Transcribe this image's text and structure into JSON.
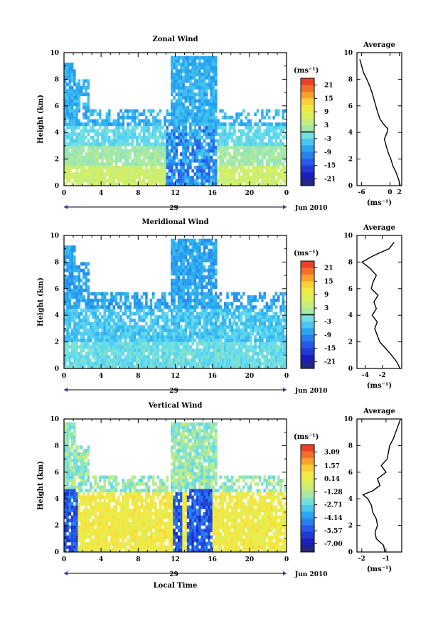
{
  "chart_data": [
    {
      "type": "heatmap",
      "title": "Zonal Wind",
      "ylabel": "Height (km)",
      "xlabel": "",
      "xlim": [
        0,
        24
      ],
      "ylim": [
        0,
        10
      ],
      "xticks": [
        "0",
        "4",
        "8",
        "12",
        "16",
        "20",
        "0"
      ],
      "yticks": [
        "0",
        "2",
        "4",
        "6",
        "8",
        "10"
      ],
      "date_label": "29",
      "month_label": "Jun 2010",
      "colorbar": {
        "unit": "(ms⁻¹)",
        "ticks": [
          "21",
          "15",
          "9",
          "3",
          "-3",
          "-9",
          "-15",
          "-21"
        ],
        "range": [
          -24,
          24
        ],
        "zero_line": 0
      },
      "profile": {
        "title": "Average",
        "xlabel": "(ms⁻¹)",
        "xticks": [
          "-6",
          "0",
          "2"
        ],
        "xlim": [
          -7,
          2.5
        ],
        "yticks": [
          "0",
          "2",
          "4",
          "6",
          "8",
          "10"
        ],
        "heights": [
          0.0,
          0.5,
          1.0,
          1.5,
          2.0,
          2.5,
          3.0,
          3.5,
          4.0,
          4.3,
          4.6,
          5.0,
          5.5,
          6.0,
          6.5,
          7.0,
          7.5,
          8.0,
          8.5,
          9.0,
          9.5
        ],
        "values": [
          2.2,
          1.8,
          1.3,
          0.6,
          0.2,
          -0.4,
          -0.8,
          -1.2,
          -0.6,
          -0.5,
          -1.3,
          -2.1,
          -2.6,
          -3.0,
          -3.4,
          -3.8,
          -4.3,
          -4.9,
          -5.6,
          -6.0,
          -6.4
        ]
      }
    },
    {
      "type": "heatmap",
      "title": "Meridional Wind",
      "ylabel": "Height (km)",
      "xlabel": "",
      "xlim": [
        0,
        24
      ],
      "ylim": [
        0,
        10
      ],
      "xticks": [
        "0",
        "4",
        "8",
        "12",
        "16",
        "20",
        "0"
      ],
      "yticks": [
        "0",
        "2",
        "4",
        "6",
        "8",
        "10"
      ],
      "date_label": "29",
      "month_label": "Jun 2010",
      "colorbar": {
        "unit": "(ms⁻¹)",
        "ticks": [
          "21",
          "15",
          "9",
          "3",
          "-3",
          "-9",
          "-15",
          "-21"
        ],
        "range": [
          -24,
          24
        ],
        "zero_line": 0
      },
      "profile": {
        "title": "Average",
        "xlabel": "(ms⁻¹)",
        "xticks": [
          "-4",
          "-2"
        ],
        "xlim": [
          -5,
          0.3
        ],
        "yticks": [
          "0",
          "2",
          "4",
          "6",
          "8",
          "10"
        ],
        "heights": [
          0.0,
          0.5,
          1.0,
          1.5,
          2.0,
          2.5,
          3.0,
          3.5,
          4.0,
          4.5,
          5.0,
          5.5,
          6.0,
          6.5,
          7.0,
          7.5,
          8.0,
          8.5,
          9.0,
          9.5
        ],
        "values": [
          0.1,
          -0.3,
          -0.9,
          -1.6,
          -2.3,
          -2.6,
          -2.9,
          -2.6,
          -3.2,
          -2.7,
          -3.0,
          -2.5,
          -3.3,
          -3.1,
          -2.7,
          -3.4,
          -4.4,
          -3.0,
          -1.2,
          -0.6
        ]
      }
    },
    {
      "type": "heatmap",
      "title": "Vertical Wind",
      "ylabel": "Height (km)",
      "xlabel": "Local Time",
      "xlim": [
        0,
        24
      ],
      "ylim": [
        0,
        10
      ],
      "xticks": [
        "0",
        "4",
        "8",
        "12",
        "16",
        "20",
        "0"
      ],
      "yticks": [
        "0",
        "2",
        "4",
        "6",
        "8",
        "10"
      ],
      "date_label": "29",
      "month_label": "Jun 2010",
      "colorbar": {
        "unit": "(ms⁻¹)",
        "ticks": [
          "3.09",
          "1.57",
          "0.14",
          "-1.28",
          "-2.71",
          "-4.14",
          "-5.57",
          "-7.00"
        ],
        "range": [
          -7.9,
          3.9
        ],
        "zero_line": null
      },
      "profile": {
        "title": "Average",
        "xlabel": "(ms⁻¹)",
        "xticks": [
          "-2",
          "-1"
        ],
        "xlim": [
          -2.2,
          -0.35
        ],
        "yticks": [
          "0",
          "2",
          "4",
          "6",
          "8",
          "10"
        ],
        "heights": [
          0.0,
          0.5,
          1.0,
          1.5,
          2.0,
          2.5,
          3.0,
          3.5,
          4.0,
          4.3,
          4.6,
          5.0,
          5.5,
          6.0,
          6.5,
          7.0,
          7.5,
          8.0,
          8.5,
          9.0,
          9.5,
          10.0
        ],
        "values": [
          -1.05,
          -1.1,
          -1.4,
          -1.45,
          -1.35,
          -1.4,
          -1.55,
          -1.6,
          -1.75,
          -1.95,
          -1.55,
          -1.25,
          -1.35,
          -1.0,
          -1.2,
          -0.95,
          -0.9,
          -0.85,
          -0.7,
          -0.6,
          -0.5,
          -0.4
        ]
      }
    }
  ]
}
